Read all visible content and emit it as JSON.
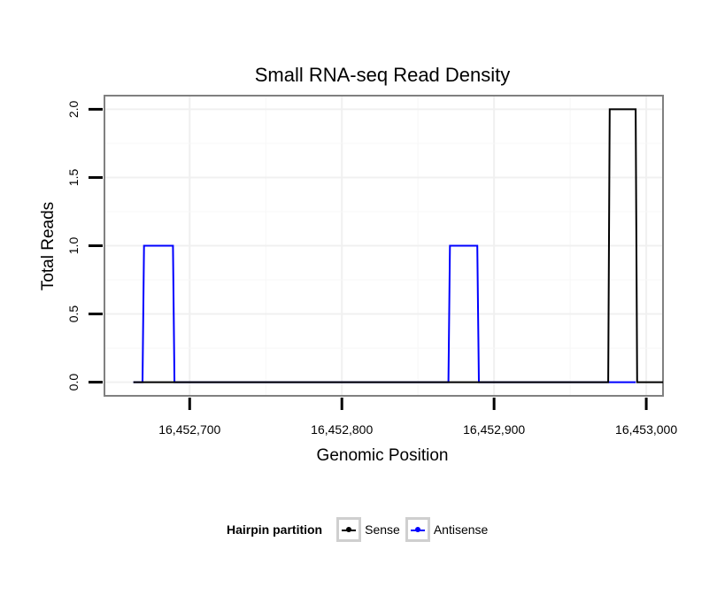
{
  "chart_data": {
    "type": "line",
    "title": "Small RNA-seq Read Density",
    "xlabel": "Genomic Position",
    "ylabel": "Total Reads",
    "xlim": [
      16452644,
      16453011
    ],
    "ylim": [
      -0.1,
      2.1
    ],
    "x_ticks": [
      16452700,
      16452800,
      16452900,
      16453000
    ],
    "x_tick_labels": [
      "16,452,700",
      "16,452,800",
      "16,452,900",
      "16,453,000"
    ],
    "y_ticks": [
      0,
      0.5,
      1,
      1.5,
      2
    ],
    "y_tick_labels": [
      "0.0",
      "0.5",
      "1.0",
      "1.5",
      "2.0"
    ],
    "grid": true,
    "legend_title": "Hairpin partition",
    "series": [
      {
        "name": "Sense",
        "color": "#000000",
        "x": [
          16452663,
          16452975,
          16452976,
          16452993,
          16452994,
          16453011
        ],
        "y": [
          0,
          0,
          2,
          2,
          0,
          0
        ]
      },
      {
        "name": "Antisense",
        "color": "#0000ff",
        "x": [
          16452663,
          16452669,
          16452670,
          16452689,
          16452690,
          16452870,
          16452871,
          16452889,
          16452890,
          16452975,
          16452976,
          16452993
        ],
        "y": [
          0,
          0,
          1,
          1,
          0,
          0,
          1,
          1,
          0,
          0,
          0,
          0
        ]
      }
    ]
  }
}
